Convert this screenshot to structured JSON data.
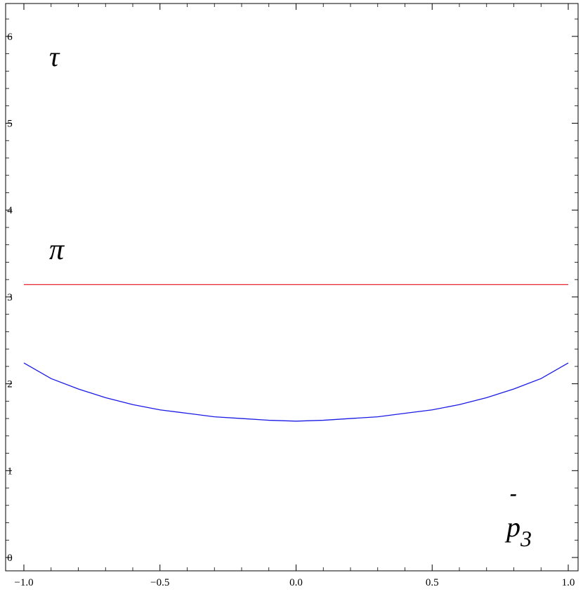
{
  "chart_data": {
    "type": "line",
    "title": "",
    "xlabel": "",
    "ylabel": "",
    "xlim": [
      -1.0,
      1.0
    ],
    "ylim": [
      0,
      6.3
    ],
    "xticks": [
      -1.0,
      -0.5,
      0.0,
      0.5,
      1.0
    ],
    "xtick_labels": [
      "−1.0",
      "−0.5",
      "0.0",
      "0.5",
      "1.0"
    ],
    "yticks": [
      0,
      1,
      2,
      3,
      4,
      5,
      6
    ],
    "ytick_labels": [
      "0",
      "1",
      "2",
      "3",
      "4",
      "5",
      "6"
    ],
    "grid": false,
    "series": [
      {
        "color": "#e8262b",
        "x": [
          -1.0,
          1.0
        ],
        "y": [
          3.1416,
          3.1416
        ]
      },
      {
        "color": "#1a1ae6",
        "x": [
          -1.0,
          -0.9,
          -0.8,
          -0.7,
          -0.6,
          -0.5,
          -0.4,
          -0.3,
          -0.2,
          -0.1,
          0.0,
          0.1,
          0.2,
          0.3,
          0.4,
          0.5,
          0.6,
          0.7,
          0.8,
          0.9,
          1.0
        ],
        "y": [
          2.24,
          2.06,
          1.94,
          1.84,
          1.76,
          1.7,
          1.66,
          1.62,
          1.6,
          1.58,
          1.57,
          1.58,
          1.6,
          1.62,
          1.66,
          1.7,
          1.76,
          1.84,
          1.94,
          2.06,
          2.24
        ]
      }
    ],
    "annotations": {
      "tau": "τ",
      "pi": "π",
      "p3_base": "p",
      "p3_sub": "3",
      "p3_bar": "-"
    }
  }
}
